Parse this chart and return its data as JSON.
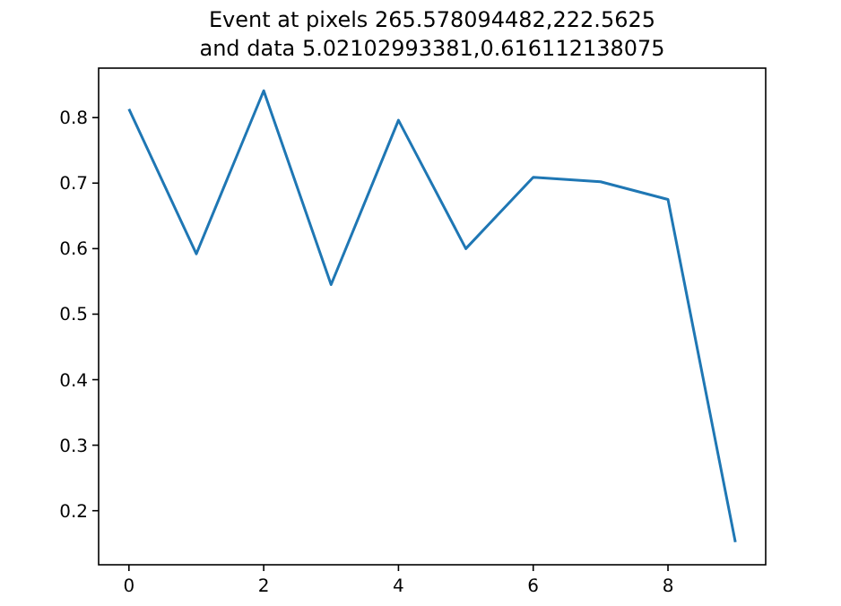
{
  "chart_data": {
    "type": "line",
    "title": "Event at pixels 265.578094482,222.5625\nand data 5.02102993381,0.616112138075",
    "x": [
      0,
      1,
      2,
      3,
      4,
      5,
      6,
      7,
      8,
      9
    ],
    "series": [
      {
        "color": "#1f77b4",
        "values": [
          0.813,
          0.592,
          0.841,
          0.545,
          0.796,
          0.6,
          0.709,
          0.702,
          0.675,
          0.152
        ]
      }
    ],
    "xlim": [
      -0.45,
      9.45
    ],
    "xticks": [
      0,
      2,
      4,
      6,
      8
    ],
    "ylim": [
      0.1175,
      0.8755
    ],
    "yticks": [
      0.2,
      0.3,
      0.4,
      0.5,
      0.6,
      0.7,
      0.8
    ],
    "grid": false,
    "marker": "none",
    "line_style": "solid"
  }
}
